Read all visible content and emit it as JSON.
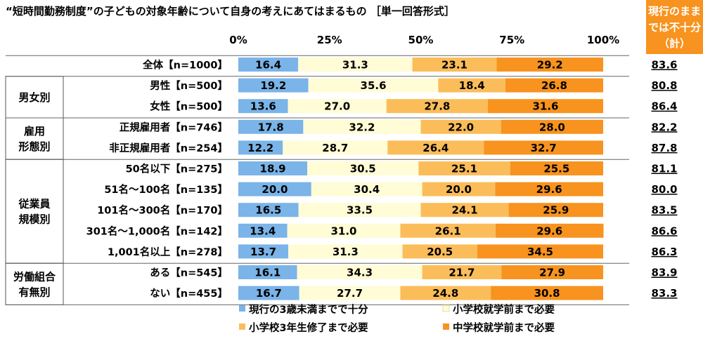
{
  "chart_data": {
    "type": "bar",
    "orientation": "horizontal",
    "stacked": true,
    "title": "“短時間勤務制度”の子どもの対象年齢について自身の考えにあてはまるもの ［単一回答形式］",
    "xlim": [
      0,
      100
    ],
    "x_ticks": [
      "0%",
      "25%",
      "50%",
      "75%",
      "100%"
    ],
    "right_header": [
      "現行のまま",
      "では不十分",
      "（計）"
    ],
    "series": [
      {
        "name": "現行の3歳未満までで十分",
        "color": "#7ab4e8"
      },
      {
        "name": "小学校就学前まで必要",
        "color": "#fffcd6"
      },
      {
        "name": "小学校3年生修了まで必要",
        "color": "#fbbd5a"
      },
      {
        "name": "中学校就学前まで必要",
        "color": "#f7931e"
      }
    ],
    "groups": [
      {
        "label": [],
        "rows": [
          {
            "label": "全体【n=1000】",
            "values": [
              16.4,
              31.3,
              23.1,
              29.2
            ],
            "total": "83.6"
          }
        ]
      },
      {
        "label": [
          "男女別"
        ],
        "rows": [
          {
            "label": "男性【n=500】",
            "values": [
              19.2,
              35.6,
              18.4,
              26.8
            ],
            "total": "80.8"
          },
          {
            "label": "女性【n=500】",
            "values": [
              13.6,
              27.0,
              27.8,
              31.6
            ],
            "total": "86.4"
          }
        ]
      },
      {
        "label": [
          "雇用",
          "形態別"
        ],
        "rows": [
          {
            "label": "正規雇用者【n=746】",
            "values": [
              17.8,
              32.2,
              22.0,
              28.0
            ],
            "total": "82.2"
          },
          {
            "label": "非正規雇用者【n=254】",
            "values": [
              12.2,
              28.7,
              26.4,
              32.7
            ],
            "total": "87.8"
          }
        ]
      },
      {
        "label": [
          "従業員",
          "規模別"
        ],
        "rows": [
          {
            "label": "50名以下【n=275】",
            "values": [
              18.9,
              30.5,
              25.1,
              25.5
            ],
            "total": "81.1"
          },
          {
            "label": "51名～100名【n=135】",
            "values": [
              20.0,
              30.4,
              20.0,
              29.6
            ],
            "total": "80.0"
          },
          {
            "label": "101名～300名【n=170】",
            "values": [
              16.5,
              33.5,
              24.1,
              25.9
            ],
            "total": "83.5"
          },
          {
            "label": "301名～1,000名【n=142】",
            "values": [
              13.4,
              31.0,
              26.1,
              29.6
            ],
            "total": "86.6"
          },
          {
            "label": "1,001名以上【n=278】",
            "values": [
              13.7,
              31.3,
              20.5,
              34.5
            ],
            "total": "86.3"
          }
        ]
      },
      {
        "label": [
          "労働組合",
          "有無別"
        ],
        "rows": [
          {
            "label": "ある【n=545】",
            "values": [
              16.1,
              34.3,
              21.7,
              27.9
            ],
            "total": "83.9"
          },
          {
            "label": "ない【n=455】",
            "values": [
              16.7,
              27.7,
              24.8,
              30.8
            ],
            "total": "83.3"
          }
        ]
      }
    ]
  }
}
